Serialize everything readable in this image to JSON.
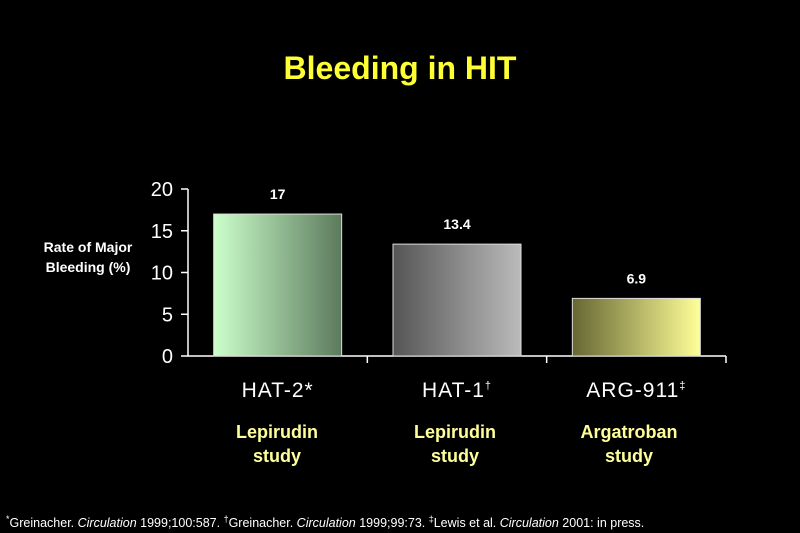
{
  "title": "Bleeding in HIT",
  "colors": {
    "background": "#000000",
    "title": "#ffff33",
    "axis": "#ffffff",
    "subtitle": "#ffff99",
    "bar_gradients": [
      [
        "#ccffcc",
        "#5c7a5c"
      ],
      [
        "#555555",
        "#bbbbbb"
      ],
      [
        "#666633",
        "#ffff99"
      ]
    ]
  },
  "chart_data": {
    "type": "bar",
    "title": "Bleeding in HIT",
    "ylabel_lines": [
      "Rate of Major",
      "Bleeding (%)"
    ],
    "xlabel": "",
    "ylim": [
      0,
      20
    ],
    "yticks": [
      "0",
      "5",
      "10",
      "15",
      "20"
    ],
    "categories": [
      "HAT-2*",
      "HAT-1",
      "ARG-911"
    ],
    "category_marks": [
      "",
      "†",
      "‡"
    ],
    "values": [
      17,
      13.4,
      6.9
    ],
    "value_labels": [
      "17",
      "13.4",
      "6.9"
    ],
    "grid": false,
    "legend": "none"
  },
  "subtitles": [
    [
      "Lepirudin",
      "study"
    ],
    [
      "Lepirudin",
      "study"
    ],
    [
      "Argatroban",
      "study"
    ]
  ],
  "footnote": {
    "mark1": "*",
    "a1": "Greinacher. ",
    "journal1": "Circulation",
    "b1": " 1999;100:587. ",
    "mark2": "†",
    "a2": "Greinacher. ",
    "journal2": "Circulation",
    "b2": " 1999;99:73. ",
    "mark3": "‡",
    "a3": "Lewis et al. ",
    "journal3": "Circulation",
    "b3": " 2001: in press."
  }
}
